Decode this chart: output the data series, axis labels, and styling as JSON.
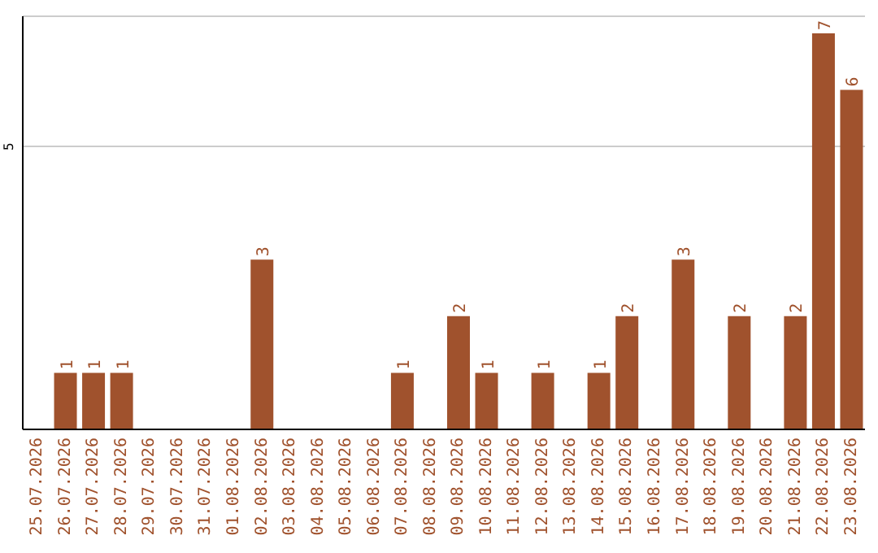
{
  "chart_data": {
    "type": "bar",
    "categories": [
      "25.07.2026",
      "26.07.2026",
      "27.07.2026",
      "28.07.2026",
      "29.07.2026",
      "30.07.2026",
      "31.07.2026",
      "01.08.2026",
      "02.08.2026",
      "03.08.2026",
      "04.08.2026",
      "05.08.2026",
      "06.08.2026",
      "07.08.2026",
      "08.08.2026",
      "09.08.2026",
      "10.08.2026",
      "11.08.2026",
      "12.08.2026",
      "13.08.2026",
      "14.08.2026",
      "15.08.2026",
      "16.08.2026",
      "17.08.2026",
      "18.08.2026",
      "19.08.2026",
      "20.08.2026",
      "21.08.2026",
      "22.08.2026",
      "23.08.2026"
    ],
    "values": [
      0,
      1,
      1,
      1,
      0,
      0,
      0,
      0,
      3,
      0,
      0,
      0,
      0,
      1,
      0,
      2,
      1,
      0,
      1,
      0,
      1,
      2,
      0,
      3,
      0,
      2,
      0,
      2,
      7,
      6
    ],
    "value_labels": [
      null,
      "1",
      "1",
      "1",
      null,
      null,
      null,
      null,
      "3",
      null,
      null,
      null,
      null,
      "1",
      null,
      "2",
      "1",
      null,
      "1",
      null,
      "1",
      "2",
      null,
      "3",
      null,
      "2",
      null,
      "2",
      "7",
      "6"
    ],
    "color": "#a0522d",
    "ylim": [
      0,
      7.3
    ],
    "yticks": [
      5
    ],
    "grid": "y"
  }
}
